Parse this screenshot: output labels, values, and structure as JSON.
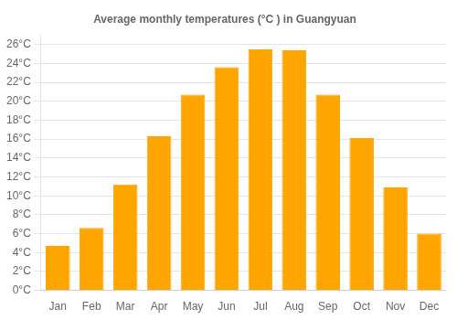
{
  "chart_data": {
    "type": "bar",
    "title": "Average monthly temperatures (°C ) in Guangyuan",
    "categories": [
      "Jan",
      "Feb",
      "Mar",
      "Apr",
      "May",
      "Jun",
      "Jul",
      "Aug",
      "Sep",
      "Oct",
      "Nov",
      "Dec"
    ],
    "values": [
      4.7,
      6.6,
      11.2,
      16.3,
      20.7,
      23.6,
      25.5,
      25.4,
      20.7,
      16.1,
      10.9,
      6.0
    ],
    "color": "#FFA500",
    "ylim": [
      0,
      27
    ],
    "yticks": [
      {
        "value": 0,
        "label": "0°C"
      },
      {
        "value": 2,
        "label": "2°C"
      },
      {
        "value": 4,
        "label": "4°C"
      },
      {
        "value": 6,
        "label": "6°C"
      },
      {
        "value": 8,
        "label": "8°C"
      },
      {
        "value": 10,
        "label": "10°C"
      },
      {
        "value": 12,
        "label": "12°C"
      },
      {
        "value": 14,
        "label": "14°C"
      },
      {
        "value": 16,
        "label": "16°C"
      },
      {
        "value": 18,
        "label": "18°C"
      },
      {
        "value": 20,
        "label": "20°C"
      },
      {
        "value": 22,
        "label": "22°C"
      },
      {
        "value": 24,
        "label": "24°C"
      },
      {
        "value": 26,
        "label": "26°C"
      }
    ],
    "grid": true
  }
}
